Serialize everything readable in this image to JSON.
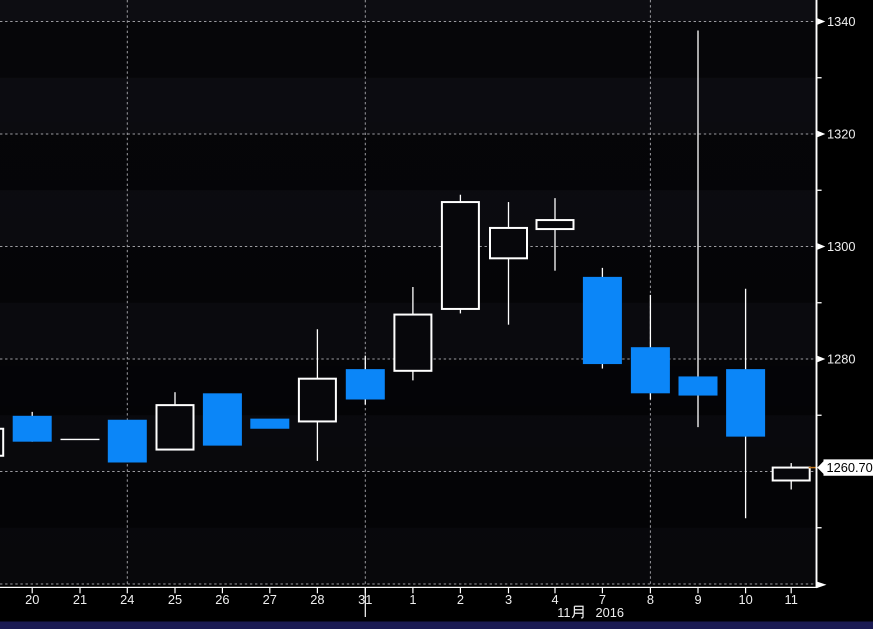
{
  "chart_data": {
    "type": "candlestick",
    "grid": "dotted",
    "legend_position": "none",
    "x_axis": {
      "labels": [
        "20",
        "21",
        "24",
        "25",
        "26",
        "27",
        "28",
        "31",
        "1",
        "2",
        "3",
        "4",
        "7",
        "8",
        "9",
        "10",
        "11"
      ],
      "month_label_full": "11月 2016",
      "month_label_number": "11",
      "month_label_cjk_char": "月",
      "month_label_year": "2016",
      "month_separator_after_label": "31",
      "vertical_gridlines_at_labels": [
        "24",
        "31",
        "8"
      ]
    },
    "y_axis": {
      "side": "right",
      "major_tick_labels": [
        "1340",
        "1320",
        "1300",
        "1280"
      ],
      "major_tick_values": [
        1340,
        1320,
        1300,
        1280
      ],
      "minor_tick_values": [
        1330,
        1310,
        1290,
        1270,
        1250
      ],
      "gridline_values": [
        1340,
        1320,
        1300,
        1280,
        1260,
        1240
      ],
      "visible_range": [
        1239.9,
        1343.8
      ],
      "last_price_label": "1260.70",
      "last_price_value": 1260.7
    },
    "candles": [
      {
        "date": "19",
        "x_index": -1,
        "partial_at_left_edge": true,
        "open": 1262.8,
        "high": 1267.6,
        "low": 1262.8,
        "close": 1267.6,
        "direction": "up"
      },
      {
        "date": "20",
        "x_index": 0,
        "open": 1269.9,
        "high": 1270.6,
        "low": 1265.3,
        "close": 1265.3,
        "direction": "down"
      },
      {
        "date": "21",
        "x_index": 1,
        "open": 1265.7,
        "high": 1265.7,
        "low": 1265.7,
        "close": 1265.7,
        "direction": "flat"
      },
      {
        "date": "24",
        "x_index": 2,
        "open": 1269.2,
        "high": 1269.2,
        "low": 1261.6,
        "close": 1261.6,
        "direction": "down"
      },
      {
        "date": "25",
        "x_index": 3,
        "open": 1263.9,
        "high": 1274.1,
        "low": 1263.9,
        "close": 1271.8,
        "direction": "up"
      },
      {
        "date": "26",
        "x_index": 4,
        "open": 1273.9,
        "high": 1273.9,
        "low": 1264.6,
        "close": 1264.6,
        "direction": "down"
      },
      {
        "date": "27",
        "x_index": 5,
        "open": 1269.4,
        "high": 1269.4,
        "low": 1267.6,
        "close": 1267.6,
        "direction": "down"
      },
      {
        "date": "28",
        "x_index": 6,
        "open": 1268.9,
        "high": 1285.3,
        "low": 1261.9,
        "close": 1276.5,
        "direction": "up"
      },
      {
        "date": "31",
        "x_index": 7,
        "open": 1278.2,
        "high": 1280.6,
        "low": 1271.9,
        "close": 1272.8,
        "direction": "down"
      },
      {
        "date": "1",
        "x_index": 8,
        "open": 1277.9,
        "high": 1292.8,
        "low": 1276.2,
        "close": 1287.9,
        "direction": "up"
      },
      {
        "date": "2",
        "x_index": 9,
        "open": 1288.9,
        "high": 1309.2,
        "low": 1288.1,
        "close": 1307.9,
        "direction": "up"
      },
      {
        "date": "3",
        "x_index": 10,
        "open": 1297.9,
        "high": 1307.9,
        "low": 1286.1,
        "close": 1303.3,
        "direction": "up"
      },
      {
        "date": "4",
        "x_index": 11,
        "open": 1303.1,
        "high": 1308.6,
        "low": 1295.7,
        "close": 1304.7,
        "direction": "up"
      },
      {
        "date": "7",
        "x_index": 12,
        "open": 1294.6,
        "high": 1296.2,
        "low": 1278.3,
        "close": 1279.1,
        "direction": "down"
      },
      {
        "date": "8",
        "x_index": 13,
        "open": 1282.1,
        "high": 1291.4,
        "low": 1272.8,
        "close": 1273.9,
        "direction": "down"
      },
      {
        "date": "9",
        "x_index": 14,
        "open": 1276.9,
        "high": 1338.4,
        "low": 1267.9,
        "close": 1273.5,
        "direction": "down"
      },
      {
        "date": "10",
        "x_index": 15,
        "open": 1278.2,
        "high": 1292.5,
        "low": 1251.7,
        "close": 1266.2,
        "direction": "down"
      },
      {
        "date": "11",
        "x_index": 16,
        "open": 1258.4,
        "high": 1261.5,
        "low": 1256.8,
        "close": 1260.7,
        "direction": "up"
      }
    ]
  },
  "colors": {
    "background": "#000000",
    "plot_band_light": "#0d0d12",
    "plot_band_dark": "#060609",
    "up_candle": "#ffffff",
    "up_candle_fill": "#07070b",
    "down_candle": "#0b86f8",
    "wick": "#ffffff",
    "gridline": "#9c9ca1",
    "axis_line": "#ffffff",
    "tick_label": "#efefef",
    "last_price_box_bg": "#ffffff",
    "last_price_box_text": "#000000",
    "last_price_connector": "#c87a1e",
    "footer_bar": "#1a1a52"
  }
}
